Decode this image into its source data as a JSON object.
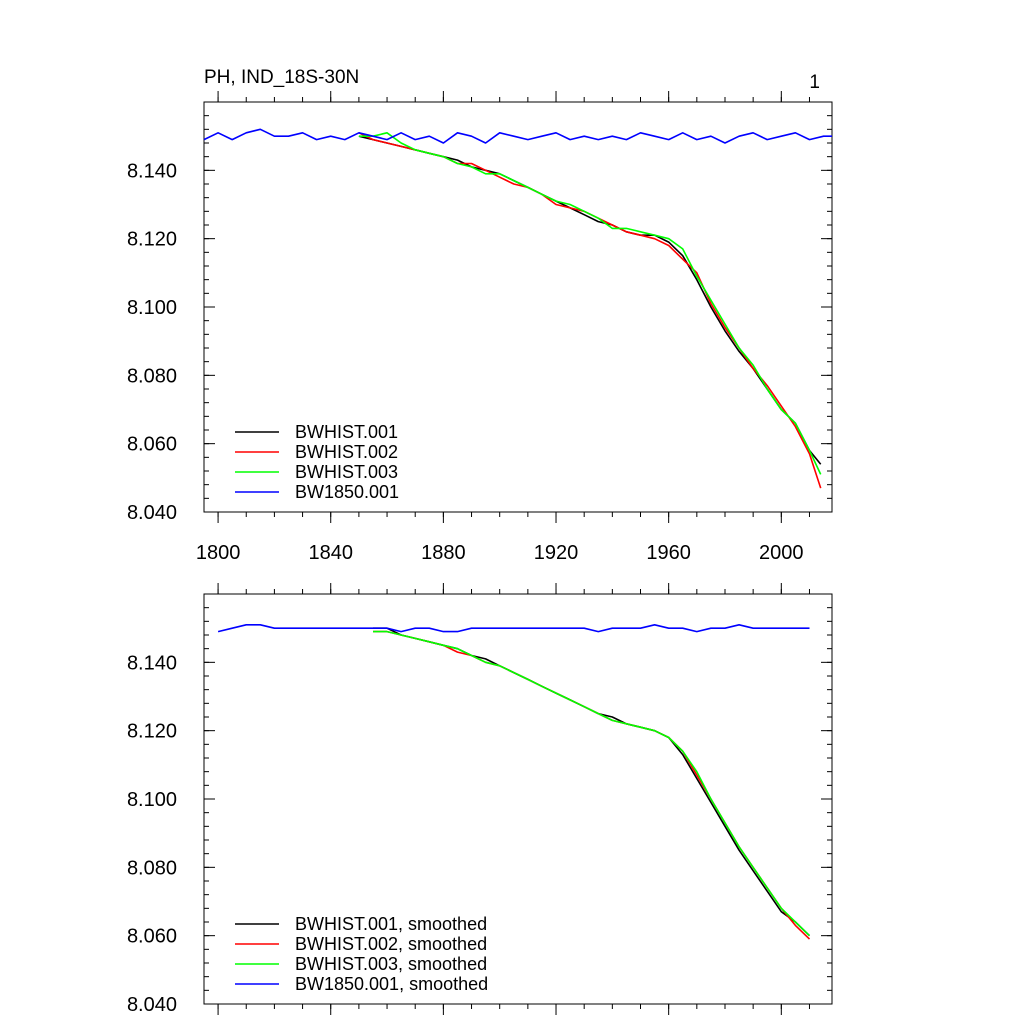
{
  "header": {
    "title": "PH, IND_18S-30N",
    "panel_number": "1"
  },
  "chart_data": [
    {
      "type": "line",
      "panel": "raw",
      "xlim": [
        1795,
        2018
      ],
      "ylim": [
        8.04,
        8.16
      ],
      "x_ticks": [
        1800,
        1840,
        1880,
        1920,
        1960,
        2000
      ],
      "y_ticks": [
        8.04,
        8.06,
        8.08,
        8.1,
        8.12,
        8.14
      ],
      "y_tick_labels": [
        "8.040",
        "8.060",
        "8.080",
        "8.100",
        "8.120",
        "8.140"
      ],
      "legend_position": "bottom-left",
      "series": [
        {
          "name": "BWHIST.001",
          "color": "#000000",
          "x": [
            1850,
            1855,
            1860,
            1865,
            1870,
            1875,
            1880,
            1885,
            1890,
            1895,
            1900,
            1905,
            1910,
            1915,
            1920,
            1925,
            1930,
            1935,
            1940,
            1945,
            1950,
            1955,
            1960,
            1965,
            1970,
            1975,
            1980,
            1985,
            1990,
            1995,
            2000,
            2005,
            2010,
            2014
          ],
          "y": [
            8.15,
            8.149,
            8.148,
            8.147,
            8.146,
            8.145,
            8.144,
            8.143,
            8.141,
            8.14,
            8.139,
            8.137,
            8.135,
            8.133,
            8.131,
            8.129,
            8.127,
            8.125,
            8.124,
            8.122,
            8.121,
            8.121,
            8.119,
            8.115,
            8.108,
            8.1,
            8.093,
            8.087,
            8.082,
            8.076,
            8.07,
            8.066,
            8.058,
            8.054
          ]
        },
        {
          "name": "BWHIST.002",
          "color": "#ff0000",
          "x": [
            1850,
            1855,
            1860,
            1865,
            1870,
            1875,
            1880,
            1885,
            1890,
            1895,
            1900,
            1905,
            1910,
            1915,
            1920,
            1925,
            1930,
            1935,
            1940,
            1945,
            1950,
            1955,
            1960,
            1965,
            1970,
            1975,
            1980,
            1985,
            1990,
            1995,
            2000,
            2005,
            2010,
            2014
          ],
          "y": [
            8.151,
            8.149,
            8.148,
            8.147,
            8.146,
            8.145,
            8.144,
            8.142,
            8.142,
            8.14,
            8.138,
            8.136,
            8.135,
            8.133,
            8.13,
            8.129,
            8.128,
            8.126,
            8.124,
            8.122,
            8.121,
            8.12,
            8.118,
            8.114,
            8.11,
            8.101,
            8.094,
            8.088,
            8.082,
            8.077,
            8.071,
            8.065,
            8.057,
            8.047
          ]
        },
        {
          "name": "BWHIST.003",
          "color": "#00ff00",
          "x": [
            1850,
            1855,
            1860,
            1865,
            1870,
            1875,
            1880,
            1885,
            1890,
            1895,
            1900,
            1905,
            1910,
            1915,
            1920,
            1925,
            1930,
            1935,
            1940,
            1945,
            1950,
            1955,
            1960,
            1965,
            1970,
            1975,
            1980,
            1985,
            1990,
            1995,
            2000,
            2005,
            2010,
            2014
          ],
          "y": [
            8.15,
            8.15,
            8.151,
            8.148,
            8.146,
            8.145,
            8.144,
            8.142,
            8.141,
            8.139,
            8.139,
            8.137,
            8.135,
            8.133,
            8.131,
            8.13,
            8.128,
            8.126,
            8.123,
            8.123,
            8.122,
            8.121,
            8.12,
            8.117,
            8.109,
            8.102,
            8.095,
            8.088,
            8.083,
            8.076,
            8.07,
            8.066,
            8.058,
            8.051
          ]
        },
        {
          "name": "BW1850.001",
          "color": "#0000ff",
          "x": [
            1795,
            1800,
            1805,
            1810,
            1815,
            1820,
            1825,
            1830,
            1835,
            1840,
            1845,
            1850,
            1855,
            1860,
            1865,
            1870,
            1875,
            1880,
            1885,
            1890,
            1895,
            1900,
            1905,
            1910,
            1915,
            1920,
            1925,
            1930,
            1935,
            1940,
            1945,
            1950,
            1955,
            1960,
            1965,
            1970,
            1975,
            1980,
            1985,
            1990,
            1995,
            2000,
            2005,
            2010,
            2015,
            2018
          ],
          "y": [
            8.149,
            8.151,
            8.149,
            8.151,
            8.152,
            8.15,
            8.15,
            8.151,
            8.149,
            8.15,
            8.149,
            8.151,
            8.15,
            8.149,
            8.151,
            8.149,
            8.15,
            8.148,
            8.151,
            8.15,
            8.148,
            8.151,
            8.15,
            8.149,
            8.15,
            8.151,
            8.149,
            8.15,
            8.149,
            8.15,
            8.149,
            8.151,
            8.15,
            8.149,
            8.151,
            8.149,
            8.15,
            8.148,
            8.15,
            8.151,
            8.149,
            8.15,
            8.151,
            8.149,
            8.15,
            8.15
          ]
        }
      ]
    },
    {
      "type": "line",
      "panel": "smoothed",
      "xlim": [
        1795,
        2018
      ],
      "ylim": [
        8.04,
        8.16
      ],
      "x_ticks": [
        1800,
        1840,
        1880,
        1920,
        1960,
        2000
      ],
      "y_ticks": [
        8.04,
        8.06,
        8.08,
        8.1,
        8.12,
        8.14
      ],
      "y_tick_labels": [
        "8.040",
        "8.060",
        "8.080",
        "8.100",
        "8.120",
        "8.140"
      ],
      "legend_position": "bottom-left",
      "series": [
        {
          "name": "BWHIST.001, smoothed",
          "color": "#000000",
          "x": [
            1855,
            1860,
            1865,
            1870,
            1875,
            1880,
            1885,
            1890,
            1895,
            1900,
            1905,
            1910,
            1915,
            1920,
            1925,
            1930,
            1935,
            1940,
            1945,
            1950,
            1955,
            1960,
            1965,
            1970,
            1975,
            1980,
            1985,
            1990,
            1995,
            2000,
            2005,
            2010
          ],
          "y": [
            8.15,
            8.15,
            8.148,
            8.147,
            8.146,
            8.145,
            8.144,
            8.142,
            8.141,
            8.139,
            8.137,
            8.135,
            8.133,
            8.131,
            8.129,
            8.127,
            8.125,
            8.124,
            8.122,
            8.121,
            8.12,
            8.118,
            8.113,
            8.106,
            8.099,
            8.092,
            8.085,
            8.079,
            8.073,
            8.067,
            8.064,
            8.06
          ]
        },
        {
          "name": "BWHIST.002, smoothed",
          "color": "#ff0000",
          "x": [
            1855,
            1860,
            1865,
            1870,
            1875,
            1880,
            1885,
            1890,
            1895,
            1900,
            1905,
            1910,
            1915,
            1920,
            1925,
            1930,
            1935,
            1940,
            1945,
            1950,
            1955,
            1960,
            1965,
            1970,
            1975,
            1980,
            1985,
            1990,
            1995,
            2000,
            2005,
            2010
          ],
          "y": [
            8.149,
            8.149,
            8.148,
            8.147,
            8.146,
            8.145,
            8.143,
            8.142,
            8.14,
            8.139,
            8.137,
            8.135,
            8.133,
            8.131,
            8.129,
            8.127,
            8.125,
            8.123,
            8.122,
            8.121,
            8.12,
            8.118,
            8.114,
            8.107,
            8.1,
            8.093,
            8.086,
            8.08,
            8.074,
            8.068,
            8.063,
            8.059
          ]
        },
        {
          "name": "BWHIST.003, smoothed",
          "color": "#00ff00",
          "x": [
            1855,
            1860,
            1865,
            1870,
            1875,
            1880,
            1885,
            1890,
            1895,
            1900,
            1905,
            1910,
            1915,
            1920,
            1925,
            1930,
            1935,
            1940,
            1945,
            1950,
            1955,
            1960,
            1965,
            1970,
            1975,
            1980,
            1985,
            1990,
            1995,
            2000,
            2005,
            2010
          ],
          "y": [
            8.149,
            8.149,
            8.148,
            8.147,
            8.146,
            8.145,
            8.144,
            8.142,
            8.14,
            8.139,
            8.137,
            8.135,
            8.133,
            8.131,
            8.129,
            8.127,
            8.125,
            8.123,
            8.122,
            8.121,
            8.12,
            8.118,
            8.114,
            8.108,
            8.1,
            8.093,
            8.086,
            8.08,
            8.074,
            8.068,
            8.064,
            8.06
          ]
        },
        {
          "name": "BW1850.001, smoothed",
          "color": "#0000ff",
          "x": [
            1800,
            1805,
            1810,
            1815,
            1820,
            1825,
            1830,
            1835,
            1840,
            1845,
            1850,
            1855,
            1860,
            1865,
            1870,
            1875,
            1880,
            1885,
            1890,
            1895,
            1900,
            1905,
            1910,
            1915,
            1920,
            1925,
            1930,
            1935,
            1940,
            1945,
            1950,
            1955,
            1960,
            1965,
            1970,
            1975,
            1980,
            1985,
            1990,
            1995,
            2000,
            2005,
            2010
          ],
          "y": [
            8.149,
            8.15,
            8.151,
            8.151,
            8.15,
            8.15,
            8.15,
            8.15,
            8.15,
            8.15,
            8.15,
            8.15,
            8.15,
            8.149,
            8.15,
            8.15,
            8.149,
            8.149,
            8.15,
            8.15,
            8.15,
            8.15,
            8.15,
            8.15,
            8.15,
            8.15,
            8.15,
            8.149,
            8.15,
            8.15,
            8.15,
            8.151,
            8.15,
            8.15,
            8.149,
            8.15,
            8.15,
            8.151,
            8.15,
            8.15,
            8.15,
            8.15,
            8.15
          ]
        }
      ]
    }
  ]
}
